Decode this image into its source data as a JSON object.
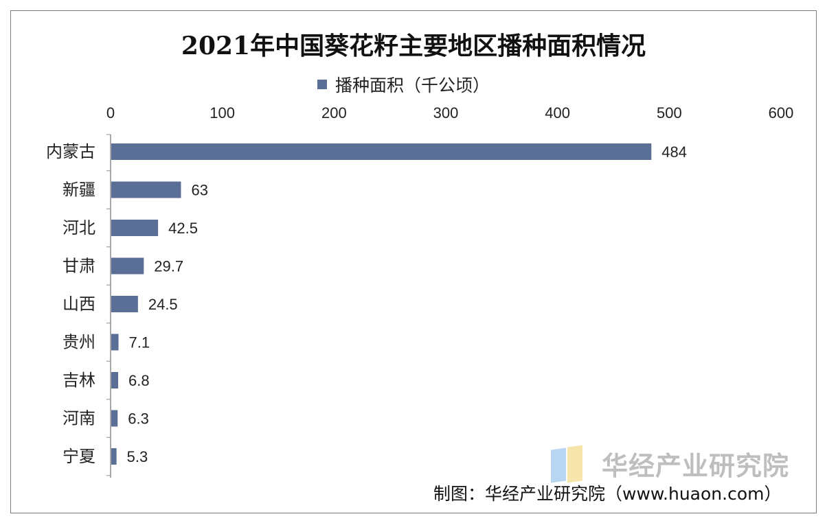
{
  "chart_data": {
    "type": "bar",
    "orientation": "horizontal",
    "title": "2021年中国葵花籽主要地区播种面积情况",
    "categories": [
      "内蒙古",
      "新疆",
      "河北",
      "甘肃",
      "山西",
      "贵州",
      "吉林",
      "河南",
      "宁夏"
    ],
    "series": [
      {
        "name": "播种面积（千公顷）",
        "values": [
          484,
          63,
          42.5,
          29.7,
          24.5,
          7.1,
          6.8,
          6.3,
          5.3
        ],
        "color": "#5b6e95"
      }
    ],
    "xlim": [
      0,
      600
    ],
    "xticks": [
      0,
      100,
      200,
      300,
      400,
      500,
      600
    ],
    "xaxis_position": "top",
    "data_labels": [
      "484",
      "63",
      "42.5",
      "29.7",
      "24.5",
      "7.1",
      "6.8",
      "6.3",
      "5.3"
    ],
    "legend_position": "top-center",
    "grid": false
  },
  "legend": {
    "label": "播种面积（千公顷）"
  },
  "watermark": {
    "text": "华经产业研究院"
  },
  "source": {
    "text": "制图：华经产业研究院（www.huaon.com）"
  }
}
